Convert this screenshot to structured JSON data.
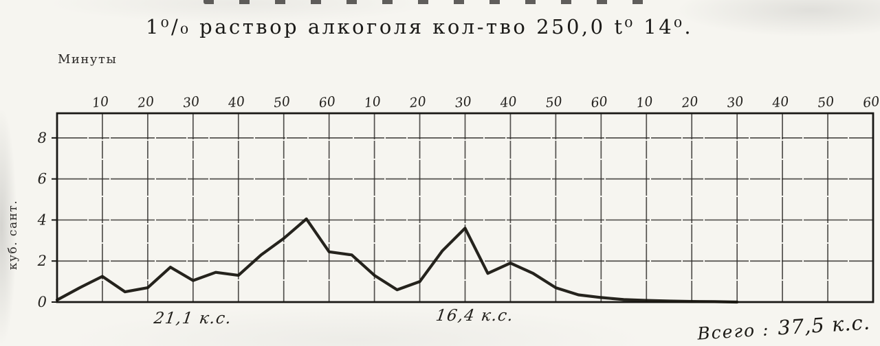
{
  "page": {
    "paper_color": "#f6f5f0",
    "ink_color": "#1c1c1c",
    "top_edge_note": "partially cropped printed heading (letter bottoms only, illegible)"
  },
  "chart_data": {
    "type": "line",
    "title": "1⁰/₀ раствор алкоголя кол-тво 250,0 t⁰ 14⁰.",
    "xlabel": "Минуты",
    "ylabel": "куб. сант.",
    "x_max": 180,
    "x_tick_interval": 10,
    "x_tick_labels": [
      "10",
      "20",
      "30",
      "40",
      "50",
      "60",
      "10",
      "20",
      "30",
      "40",
      "50",
      "60",
      "10",
      "20",
      "30",
      "40",
      "50",
      "60"
    ],
    "y_ticks": [
      0,
      2,
      4,
      6,
      8
    ],
    "ylim": [
      0,
      9.2
    ],
    "grid": true,
    "legend": "none",
    "x_minutes": [
      0,
      5,
      10,
      15,
      20,
      25,
      30,
      35,
      40,
      45,
      50,
      55,
      60,
      65,
      70,
      75,
      80,
      85,
      90,
      95,
      100,
      105,
      110,
      115,
      120,
      125,
      130,
      135,
      140,
      145,
      150
    ],
    "values": [
      0.1,
      0.7,
      1.25,
      0.5,
      0.7,
      1.7,
      1.05,
      1.45,
      1.3,
      2.3,
      3.1,
      4.05,
      2.45,
      2.3,
      1.3,
      0.6,
      1.0,
      2.5,
      3.6,
      1.4,
      1.9,
      1.4,
      0.7,
      0.35,
      0.22,
      0.12,
      0.08,
      0.05,
      0.03,
      0.02,
      0
    ],
    "annotations": {
      "hour1": {
        "text": "21,1 к.с.",
        "x_minutes_center": 32
      },
      "hour2": {
        "text": "16,4 к.с.",
        "x_minutes_center": 94
      },
      "total": {
        "prefix": "Всего :",
        "value": "37,5 к.с."
      }
    }
  }
}
